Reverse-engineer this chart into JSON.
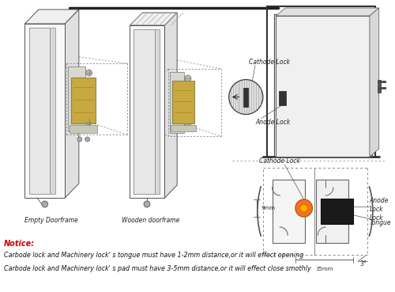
{
  "bg": "#ffffff",
  "notice_color": "#cc0000",
  "notice_text": "Notice:",
  "notice_line1": "Carbode lock and Machinery lock' s tongue must have 1-2mm distance,or it will effect opening",
  "notice_line2": "Carbode lock and Machinery lock' s pad must have 3-5mm distance,or it will effect close smothly",
  "label_empty": "Empty Doorframe",
  "label_wooden": "Wooden doorframe",
  "label_cathode1": "Cathode Lock",
  "label_anode1": "Anode Lock",
  "label_cathode2": "Cathode Lock",
  "label_anode2": "Anode\nLock",
  "label_lock": "Lock",
  "label_tongue": "Tongue",
  "dim_35mm": "35mm",
  "dim_9mm": "9mm",
  "dim_3deg": "3°"
}
